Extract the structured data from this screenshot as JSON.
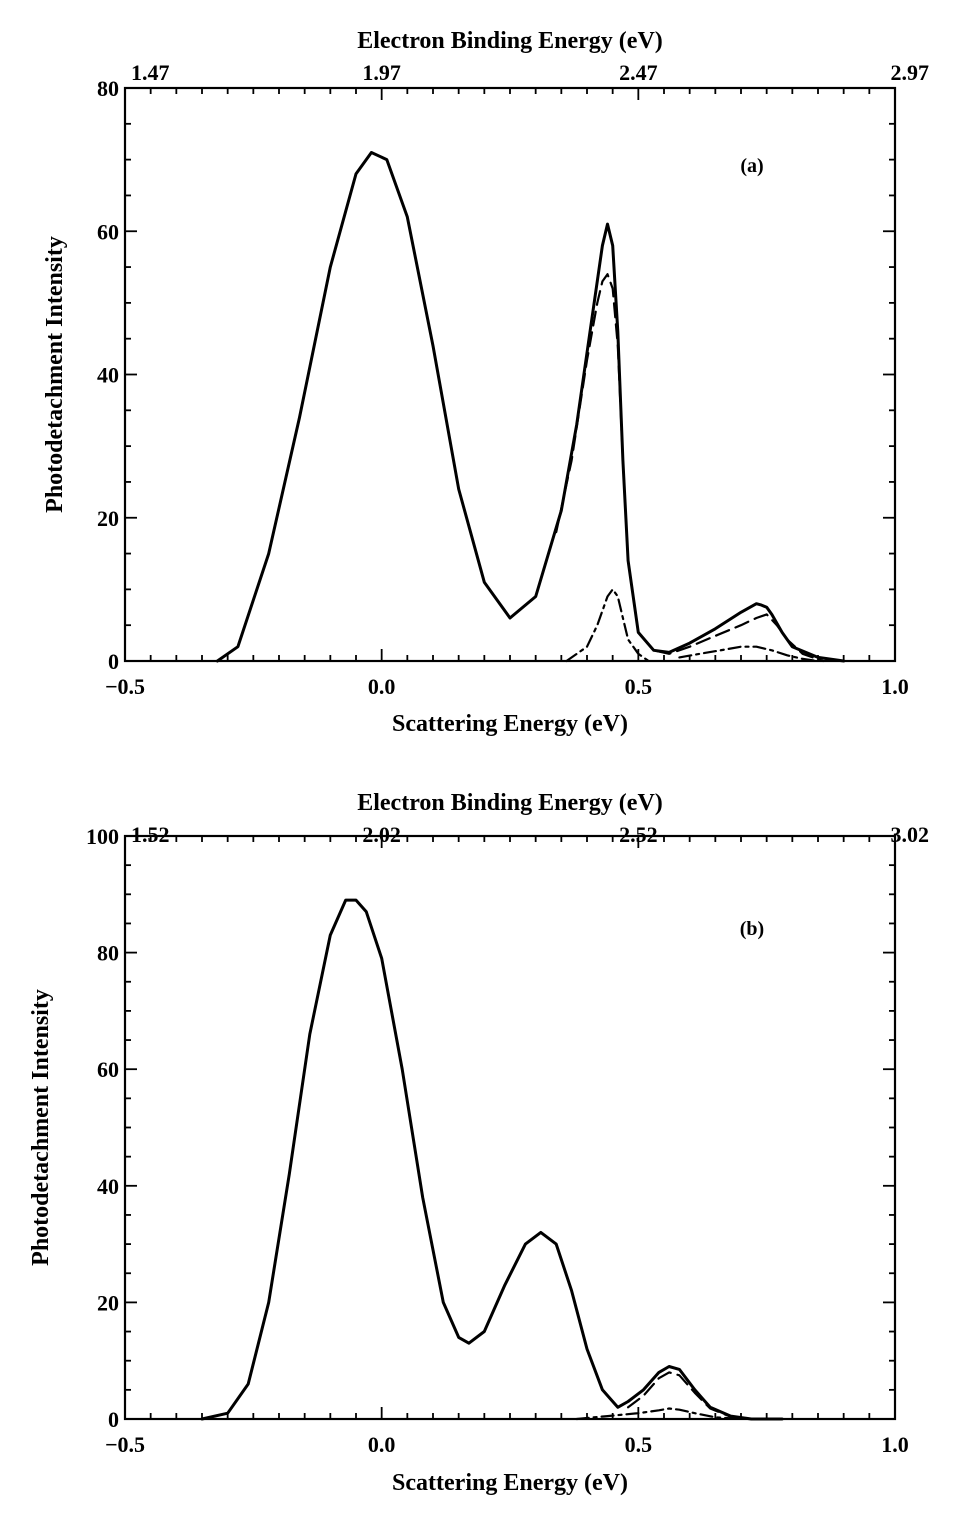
{
  "chart_data": [
    {
      "panel_label": "(a)",
      "type": "line",
      "xlabel": "Scattering Energy (eV)",
      "x2label": "Electron Binding Energy (eV)",
      "ylabel": "Photodetachment Intensity",
      "xlim": [
        -0.5,
        1.0
      ],
      "ylim": [
        0,
        80
      ],
      "x_ticks": [
        -0.5,
        0.0,
        0.5,
        1.0
      ],
      "x_tick_labels": [
        "−0.5",
        "0.0",
        "0.5",
        "1.0"
      ],
      "y_ticks": [
        0,
        20,
        40,
        60,
        80
      ],
      "y_tick_labels": [
        "0",
        "20",
        "40",
        "60",
        "80"
      ],
      "x2_tick_labels": [
        "1.47",
        "1.97",
        "2.47",
        "2.97"
      ],
      "grid": false,
      "series": [
        {
          "style": "solid",
          "x": [
            -0.32,
            -0.28,
            -0.22,
            -0.16,
            -0.1,
            -0.05,
            -0.02,
            0.01,
            0.05,
            0.1,
            0.15,
            0.2,
            0.25,
            0.3,
            0.35,
            0.38,
            0.41,
            0.43,
            0.44,
            0.45,
            0.46,
            0.47,
            0.48,
            0.5,
            0.53,
            0.56,
            0.6,
            0.65,
            0.7,
            0.73,
            0.74,
            0.75,
            0.76,
            0.78,
            0.8,
            0.85,
            0.9
          ],
          "y": [
            0,
            2,
            15,
            34,
            55,
            68,
            71,
            70,
            62,
            44,
            24,
            11,
            6,
            9,
            21,
            33,
            48,
            58,
            61,
            58,
            46,
            28,
            14,
            4,
            1.5,
            1.2,
            2.5,
            4.5,
            6.8,
            8,
            7.8,
            7.5,
            6.5,
            4,
            2,
            0.5,
            0
          ]
        },
        {
          "style": "dashed",
          "x": [
            0.34,
            0.37,
            0.4,
            0.42,
            0.43,
            0.44,
            0.45,
            0.46,
            0.47,
            0.48,
            0.5,
            0.53,
            0.56,
            0.6,
            0.65,
            0.7,
            0.73,
            0.75,
            0.77,
            0.79,
            0.82,
            0.86
          ],
          "y": [
            18,
            28,
            42,
            50,
            53,
            54,
            52,
            44,
            28,
            14,
            4,
            1.5,
            1,
            2,
            3.5,
            5,
            6,
            6.5,
            5,
            3,
            1,
            0
          ]
        },
        {
          "style": "dash-dot",
          "x": [
            0.36,
            0.4,
            0.42,
            0.44,
            0.45,
            0.46,
            0.47,
            0.48,
            0.5,
            0.52
          ],
          "y": [
            0,
            2,
            5,
            9,
            10,
            9,
            6,
            3,
            1,
            0
          ]
        },
        {
          "style": "dash-dot",
          "x": [
            0.58,
            0.62,
            0.66,
            0.7,
            0.73,
            0.76,
            0.79,
            0.82,
            0.85
          ],
          "y": [
            0.5,
            1,
            1.5,
            2,
            2,
            1.5,
            0.8,
            0.3,
            0
          ]
        }
      ]
    },
    {
      "panel_label": "(b)",
      "type": "line",
      "xlabel": "Scattering Energy (eV)",
      "x2label": "Electron Binding Energy (eV)",
      "ylabel": "Photodetachment Intensity",
      "xlim": [
        -0.5,
        1.0
      ],
      "ylim": [
        0,
        100
      ],
      "x_ticks": [
        -0.5,
        0.0,
        0.5,
        1.0
      ],
      "x_tick_labels": [
        "−0.5",
        "0.0",
        "0.5",
        "1.0"
      ],
      "y_ticks": [
        0,
        20,
        40,
        60,
        80,
        100
      ],
      "y_tick_labels": [
        "0",
        "20",
        "40",
        "60",
        "80",
        "100"
      ],
      "x2_tick_labels": [
        "1.52",
        "2.02",
        "2.52",
        "3.02"
      ],
      "grid": false,
      "series": [
        {
          "style": "solid",
          "x": [
            -0.35,
            -0.3,
            -0.26,
            -0.22,
            -0.18,
            -0.14,
            -0.1,
            -0.07,
            -0.05,
            -0.03,
            0.0,
            0.04,
            0.08,
            0.12,
            0.15,
            0.17,
            0.2,
            0.24,
            0.28,
            0.31,
            0.34,
            0.37,
            0.4,
            0.43,
            0.46,
            0.48,
            0.51,
            0.54,
            0.56,
            0.58,
            0.61,
            0.64,
            0.68,
            0.72,
            0.78
          ],
          "y": [
            0,
            1,
            6,
            20,
            42,
            66,
            83,
            89,
            89,
            87,
            79,
            60,
            38,
            20,
            14,
            13,
            15,
            23,
            30,
            32,
            30,
            22,
            12,
            5,
            2,
            3,
            5,
            8,
            9,
            8.5,
            5,
            2,
            0.5,
            0,
            0
          ]
        },
        {
          "style": "dashed",
          "x": [
            0.48,
            0.51,
            0.54,
            0.56,
            0.58,
            0.61,
            0.64,
            0.68,
            0.72
          ],
          "y": [
            2,
            4,
            7,
            8,
            7.5,
            4.5,
            1.8,
            0.4,
            0
          ]
        },
        {
          "style": "dash-dot",
          "x": [
            0.38,
            0.44,
            0.5,
            0.54,
            0.56,
            0.58,
            0.61,
            0.65,
            0.7
          ],
          "y": [
            0,
            0.5,
            1,
            1.5,
            1.8,
            1.6,
            1,
            0.3,
            0
          ]
        }
      ]
    }
  ]
}
